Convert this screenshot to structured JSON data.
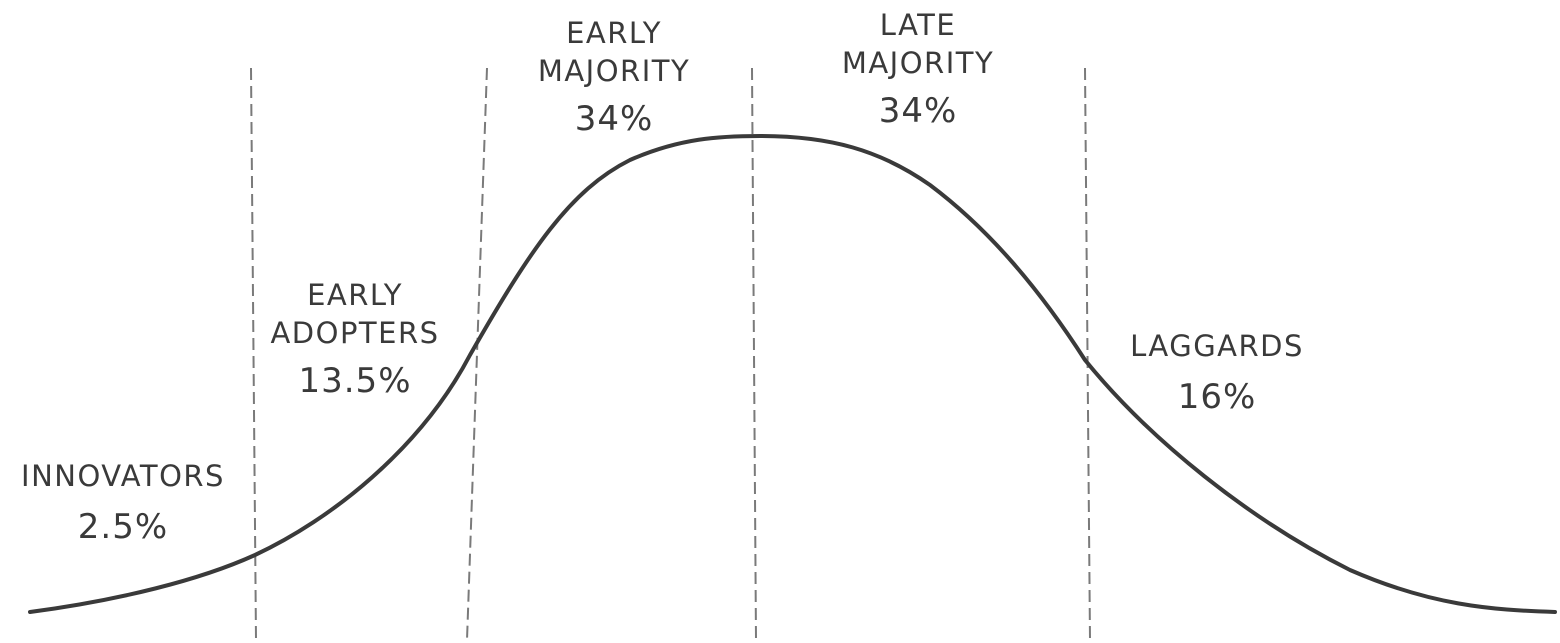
{
  "colors": {
    "ink": "#3a3a3a",
    "divider": "#7a7a7a",
    "background": "#ffffff"
  },
  "segments": [
    {
      "id": "innovators",
      "name_lines": [
        "INNOVATORS"
      ],
      "percent_label": "2.5%",
      "percent": 2.5
    },
    {
      "id": "early-adopters",
      "name_lines": [
        "EARLY",
        "ADOPTERS"
      ],
      "percent_label": "13.5%",
      "percent": 13.5
    },
    {
      "id": "early-majority",
      "name_lines": [
        "EARLY",
        "MAJORITY"
      ],
      "percent_label": "34%",
      "percent": 34
    },
    {
      "id": "late-majority",
      "name_lines": [
        "LATE",
        "MAJORITY"
      ],
      "percent_label": "34%",
      "percent": 34
    },
    {
      "id": "laggards",
      "name_lines": [
        "LAGGARDS"
      ],
      "percent_label": "16%",
      "percent": 16
    }
  ]
}
